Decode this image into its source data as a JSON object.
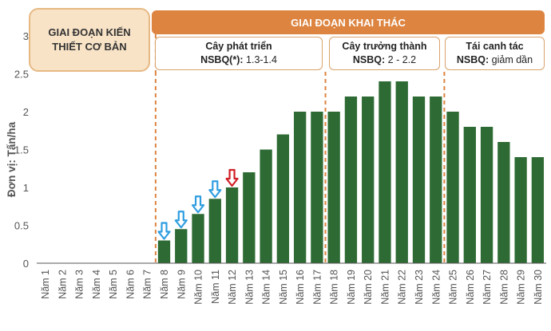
{
  "phases": {
    "build": "GIAI ĐOẠN KIẾN THIẾT CƠ BẢN",
    "exploit": "GIAI ĐOẠN KHAI THÁC"
  },
  "stages": [
    {
      "title": "Cây phát triển",
      "label": "NSBQ(*):",
      "value": "1.3-1.4"
    },
    {
      "title": "Cây trưởng thành",
      "label": "NSBQ:",
      "value": "2 - 2.2"
    },
    {
      "title": "Tái canh tác",
      "label": "NSBQ:",
      "value": "giảm dần"
    }
  ],
  "colors": {
    "bar": "#2e6b34",
    "phase_header": "#dd8440",
    "phase_box": "#f8e3c7",
    "divider": "#dd8440",
    "arrow_blue": "#2f9ee0",
    "arrow_red": "#d11f26"
  },
  "chart_data": {
    "type": "bar",
    "ylabel": "Đơn vị: Tấn/ha",
    "xlabel": "",
    "ylim": [
      0,
      3
    ],
    "yticks": [
      "0",
      "0.5",
      "1",
      "1.5",
      "2",
      "2.5",
      "3"
    ],
    "categories": [
      "Năm 1",
      "Năm 2",
      "Năm 3",
      "Năm 4",
      "Năm 5",
      "Năm 6",
      "Năm 7",
      "Năm 8",
      "Năm 9",
      "Năm 10",
      "Năm 11",
      "Năm 12",
      "Năm 13",
      "Năm 14",
      "Năm 15",
      "Năm 16",
      "Năm 17",
      "Năm 18",
      "Năm 19",
      "Năm 20",
      "Năm 21",
      "Năm 22",
      "Năm 23",
      "Năm 24",
      "Năm 25",
      "Năm 26",
      "Năm 27",
      "Năm 28",
      "Năm 29",
      "Năm 30"
    ],
    "values": [
      0,
      0,
      0,
      0,
      0,
      0,
      0,
      0.3,
      0.45,
      0.65,
      0.85,
      1.0,
      1.2,
      1.5,
      1.7,
      2.0,
      2.0,
      2.0,
      2.2,
      2.2,
      2.4,
      2.4,
      2.2,
      2.2,
      2.0,
      1.8,
      1.8,
      1.6,
      1.4,
      1.4
    ],
    "arrows": [
      {
        "category": "Năm 8",
        "color": "blue"
      },
      {
        "category": "Năm 9",
        "color": "blue"
      },
      {
        "category": "Năm 10",
        "color": "blue"
      },
      {
        "category": "Năm 11",
        "color": "blue"
      },
      {
        "category": "Năm 12",
        "color": "red"
      }
    ],
    "grid": false,
    "legend": "none"
  }
}
